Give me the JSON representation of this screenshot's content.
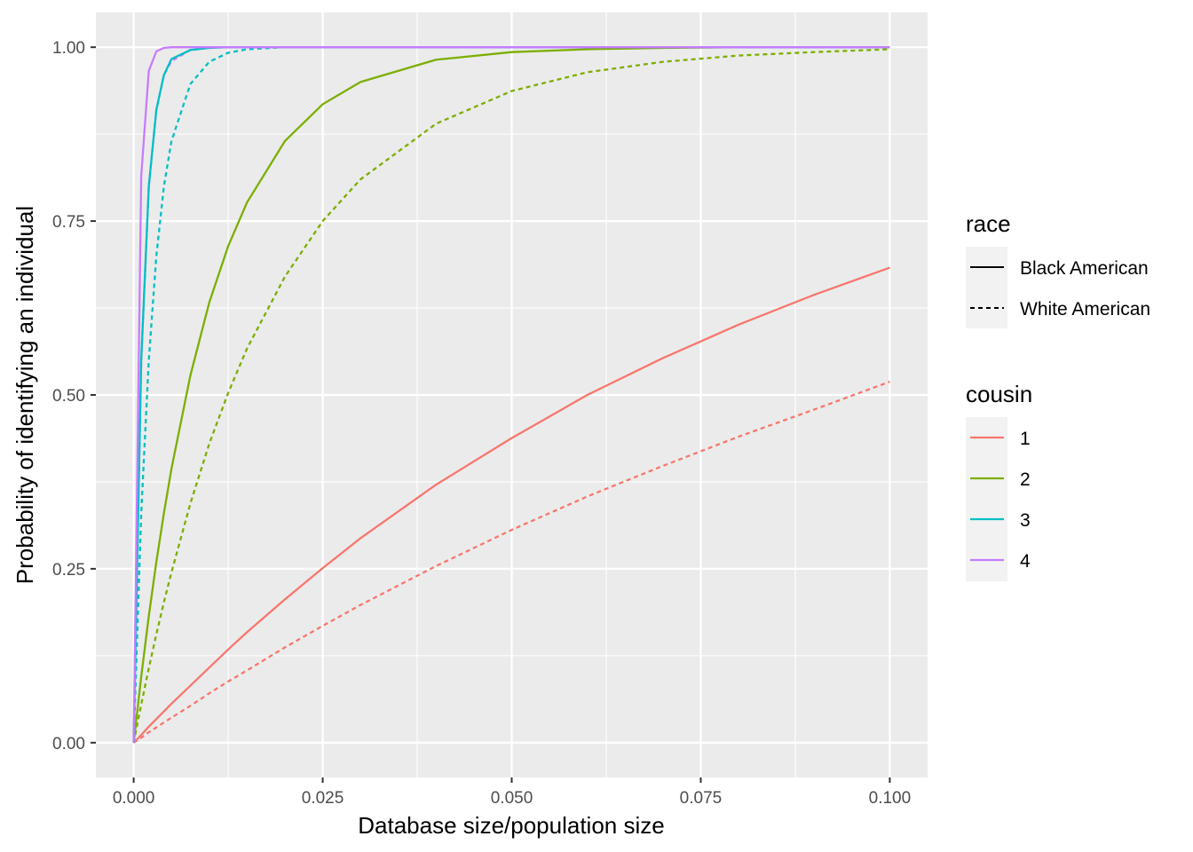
{
  "chart_data": {
    "type": "line",
    "title": "",
    "xlabel": "Database size/population size",
    "ylabel": "Probability of identifying an individual",
    "xlim": [
      -0.005,
      0.105
    ],
    "ylim": [
      -0.05,
      1.05
    ],
    "x_ticks": [
      0.0,
      0.025,
      0.05,
      0.075,
      0.1
    ],
    "x_tick_labels": [
      "0.000",
      "0.025",
      "0.050",
      "0.075",
      "0.100"
    ],
    "y_ticks": [
      0.0,
      0.25,
      0.5,
      0.75,
      1.0
    ],
    "y_tick_labels": [
      "0.00",
      "0.25",
      "0.50",
      "0.75",
      "1.00"
    ],
    "grid": true,
    "legend_position": "right",
    "legends": [
      {
        "title": "race",
        "entries": [
          {
            "label": "Black American",
            "linetype": "solid"
          },
          {
            "label": "White American",
            "linetype": "dashed"
          }
        ]
      },
      {
        "title": "cousin",
        "entries": [
          {
            "label": "1",
            "color": "#F8766D"
          },
          {
            "label": "2",
            "color": "#7CAE00"
          },
          {
            "label": "3",
            "color": "#00BFC4"
          },
          {
            "label": "4",
            "color": "#C77CFF"
          }
        ]
      }
    ],
    "x": [
      0,
      0.001,
      0.002,
      0.003,
      0.004,
      0.005,
      0.0075,
      0.01,
      0.0125,
      0.015,
      0.02,
      0.025,
      0.03,
      0.04,
      0.05,
      0.06,
      0.07,
      0.08,
      0.09,
      0.1
    ],
    "series": [
      {
        "cousin": "1",
        "race": "Black American",
        "color": "#F8766D",
        "linetype": "solid",
        "values": [
          0,
          0.011,
          0.023,
          0.034,
          0.045,
          0.056,
          0.082,
          0.108,
          0.134,
          0.159,
          0.206,
          0.251,
          0.294,
          0.371,
          0.438,
          0.5,
          0.553,
          0.601,
          0.644,
          0.683
        ]
      },
      {
        "cousin": "1",
        "race": "White American",
        "color": "#F8766D",
        "linetype": "dashed",
        "values": [
          0,
          0.007,
          0.015,
          0.022,
          0.029,
          0.036,
          0.053,
          0.071,
          0.088,
          0.104,
          0.137,
          0.168,
          0.198,
          0.254,
          0.306,
          0.354,
          0.398,
          0.44,
          0.479,
          0.519
        ]
      },
      {
        "cousin": "2",
        "race": "Black American",
        "color": "#7CAE00",
        "linetype": "solid",
        "values": [
          0,
          0.095,
          0.182,
          0.26,
          0.33,
          0.394,
          0.528,
          0.633,
          0.714,
          0.777,
          0.865,
          0.918,
          0.95,
          0.982,
          0.993,
          0.997,
          0.999,
          1.0,
          1.0,
          1.0
        ]
      },
      {
        "cousin": "2",
        "race": "White American",
        "color": "#7CAE00",
        "linetype": "dashed",
        "values": [
          0,
          0.055,
          0.107,
          0.156,
          0.202,
          0.245,
          0.344,
          0.43,
          0.503,
          0.567,
          0.67,
          0.75,
          0.81,
          0.89,
          0.937,
          0.964,
          0.979,
          0.988,
          0.993,
          0.997
        ]
      },
      {
        "cousin": "3",
        "race": "Black American",
        "color": "#00BFC4",
        "linetype": "solid",
        "values": [
          0,
          0.55,
          0.8,
          0.91,
          0.96,
          0.983,
          0.996,
          0.999,
          1.0,
          1.0,
          1.0,
          1.0,
          1.0,
          1.0,
          1.0,
          1.0,
          1.0,
          1.0,
          1.0,
          1.0
        ]
      },
      {
        "cousin": "3",
        "race": "White American",
        "color": "#00BFC4",
        "linetype": "dashed",
        "values": [
          0,
          0.33,
          0.55,
          0.7,
          0.8,
          0.865,
          0.947,
          0.979,
          0.992,
          0.997,
          1.0,
          1.0,
          1.0,
          1.0,
          1.0,
          1.0,
          1.0,
          1.0,
          1.0,
          1.0
        ]
      },
      {
        "cousin": "4",
        "race": "Black American",
        "color": "#C77CFF",
        "linetype": "solid",
        "values": [
          0,
          0.815,
          0.966,
          0.994,
          0.999,
          1.0,
          1.0,
          1.0,
          1.0,
          1.0,
          1.0,
          1.0,
          1.0,
          1.0,
          1.0,
          1.0,
          1.0,
          1.0,
          1.0,
          1.0
        ]
      },
      {
        "cousin": "4",
        "race": "White American",
        "color": "#C77CFF",
        "linetype": "dashed",
        "values": [
          0,
          0.55,
          0.8,
          0.91,
          0.96,
          0.98,
          0.996,
          0.999,
          1.0,
          1.0,
          1.0,
          1.0,
          1.0,
          1.0,
          1.0,
          1.0,
          1.0,
          1.0,
          1.0,
          1.0
        ]
      }
    ]
  }
}
